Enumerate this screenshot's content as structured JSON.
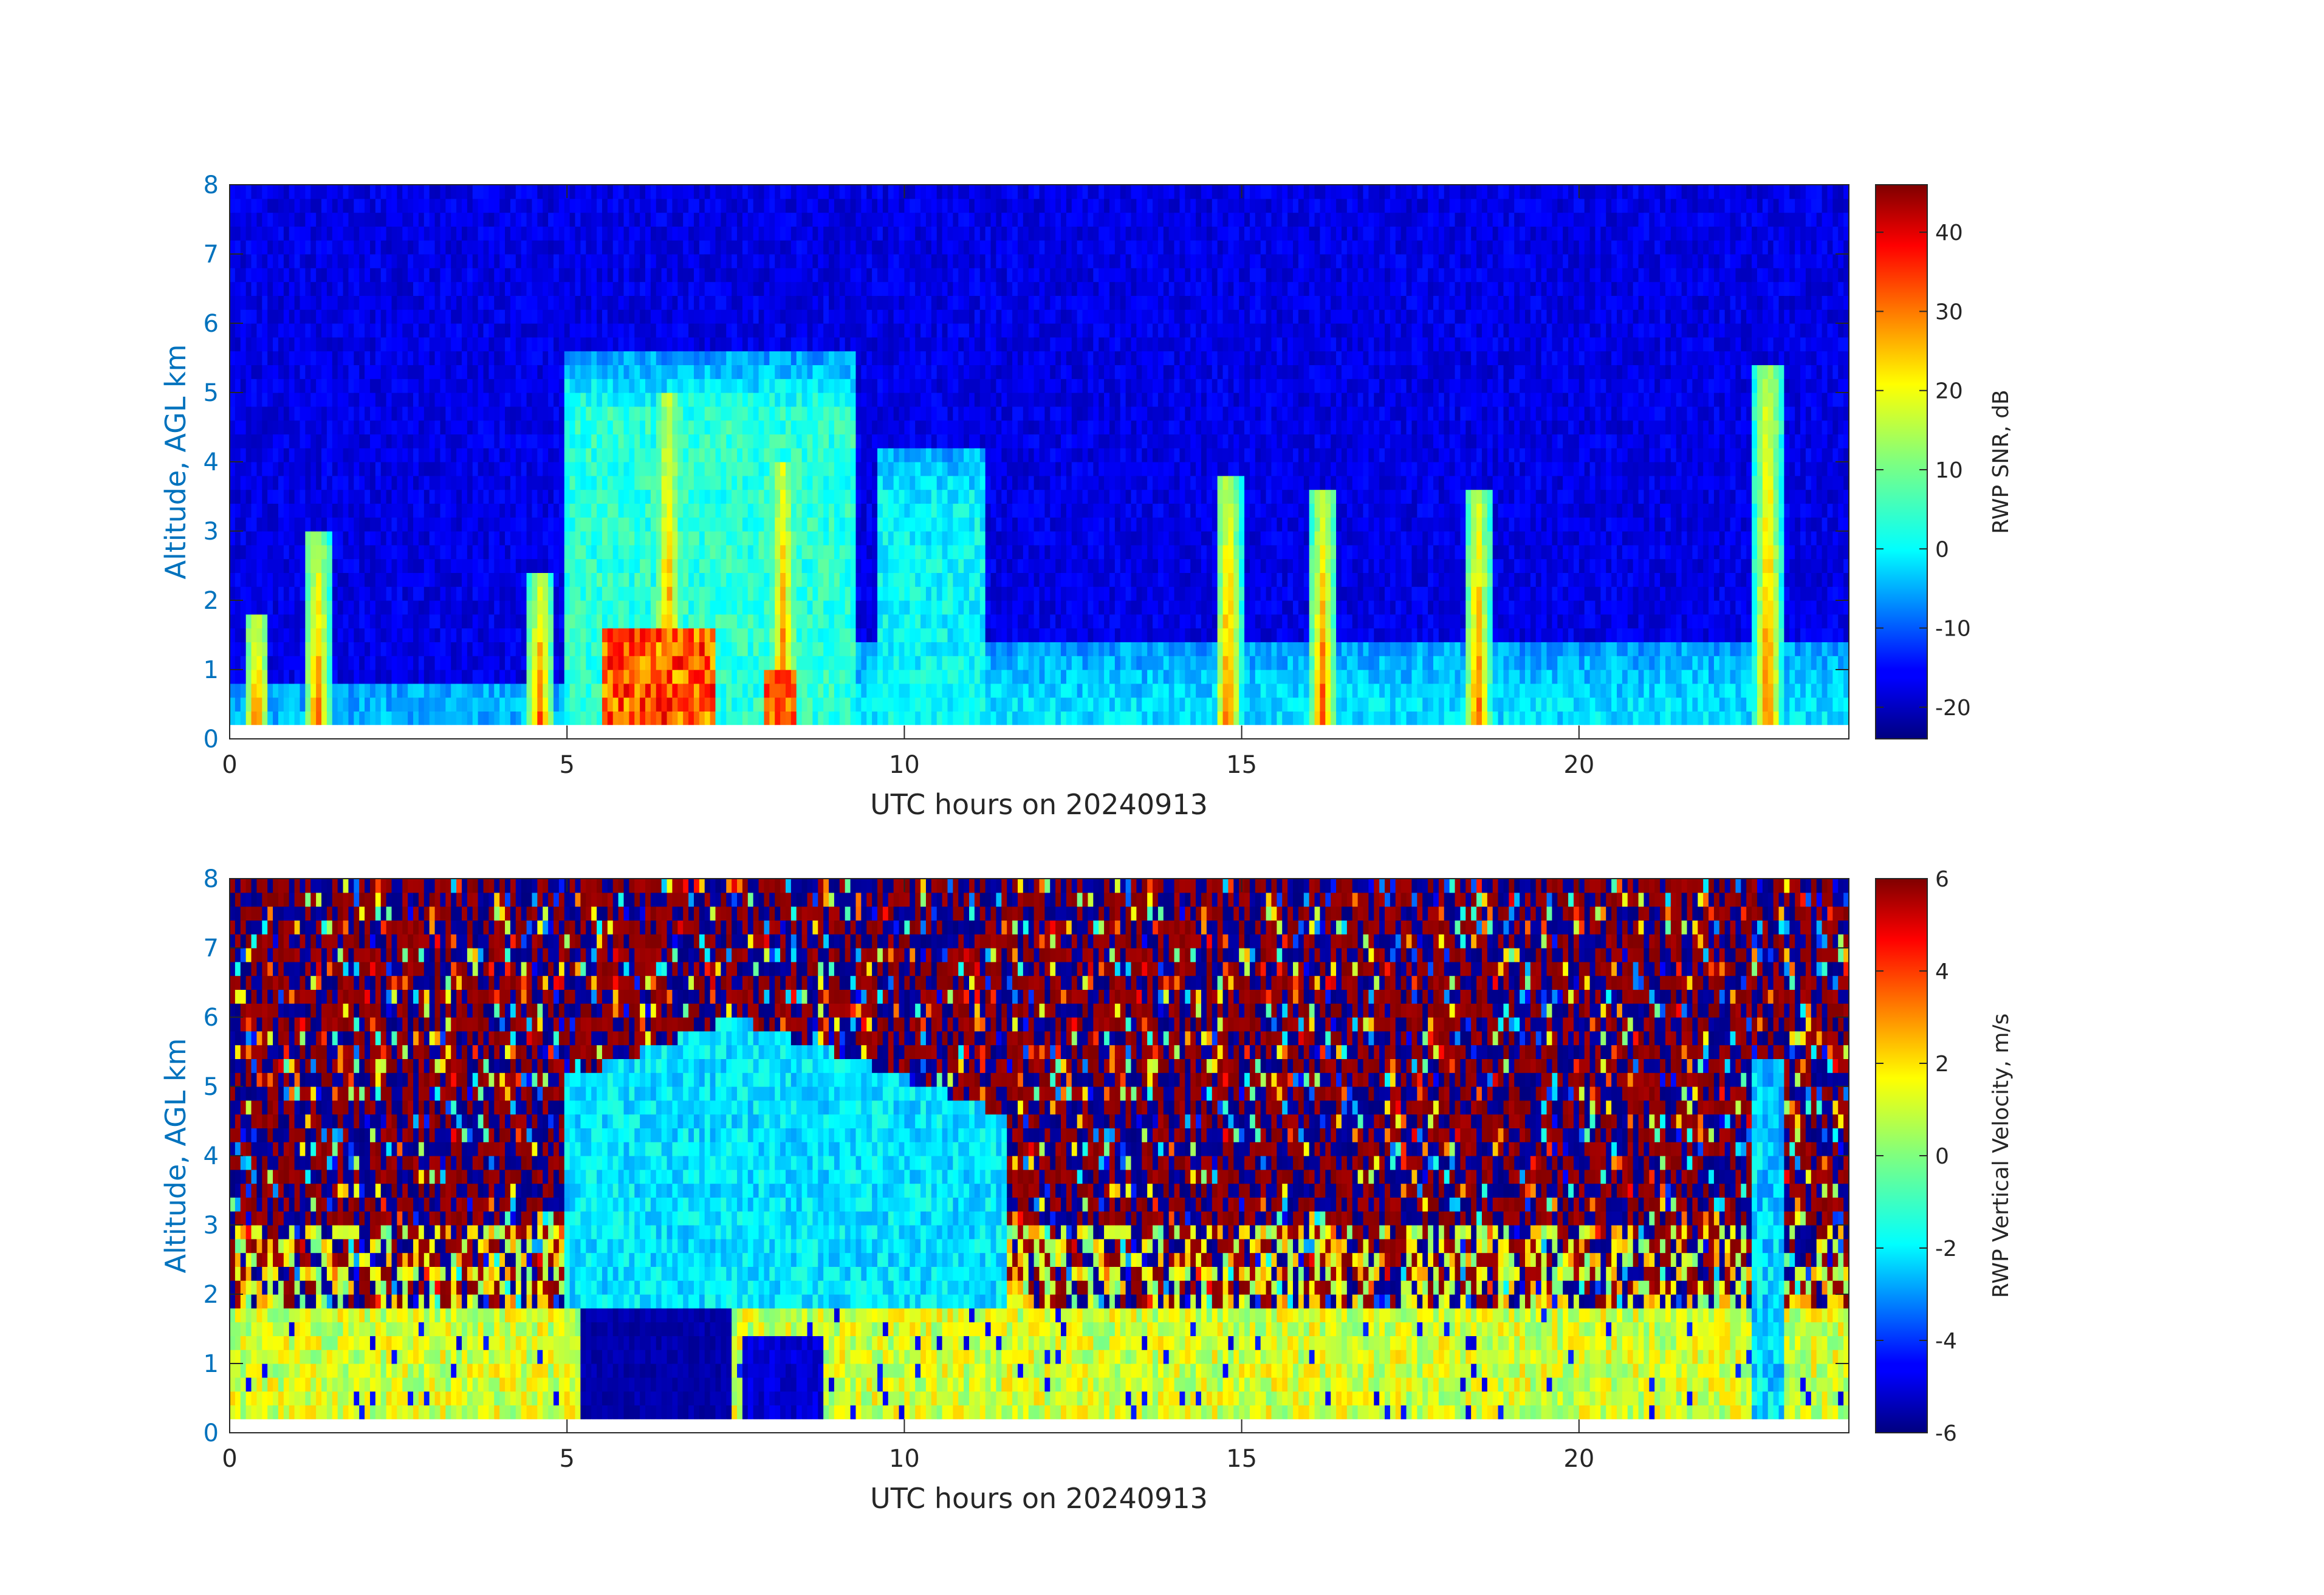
{
  "chart_data": [
    {
      "type": "heatmap",
      "title": "",
      "xlabel": "UTC hours on 20240913",
      "ylabel": "Altitude, AGL km",
      "xlim": [
        0,
        24
      ],
      "ylim": [
        0,
        8
      ],
      "x_ticks": [
        0,
        5,
        10,
        15,
        20
      ],
      "y_ticks": [
        0,
        1,
        2,
        3,
        4,
        5,
        6,
        7,
        8
      ],
      "colorbar": {
        "label": "RWP SNR, dB",
        "colormap": "jet",
        "range": [
          -24,
          46
        ],
        "ticks": [
          -20,
          -10,
          0,
          10,
          20,
          30,
          40
        ]
      },
      "grid": false,
      "features": [
        {
          "hours": [
            5.0,
            9.3
          ],
          "top_km": 5.5,
          "snr_db": 5,
          "note": ""
        },
        {
          "hours": [
            9.6,
            11.2
          ],
          "top_km": 4.2,
          "snr_db": 2
        },
        {
          "hours": [
            9.3,
            24.0
          ],
          "top_km": 1.3,
          "snr_db": 0
        },
        {
          "hours": [
            0.0,
            5.0
          ],
          "top_km": 0.8,
          "snr_db": -2
        }
      ],
      "peaks": [
        {
          "hour": 0.4,
          "top_km": 1.8
        },
        {
          "hour": 1.3,
          "top_km": 2.9
        },
        {
          "hour": 4.6,
          "top_km": 2.3
        },
        {
          "hour": 6.5,
          "top_km": 5.0
        },
        {
          "hour": 8.2,
          "top_km": 4.0
        },
        {
          "hour": 14.8,
          "top_km": 3.8
        },
        {
          "hour": 16.2,
          "top_km": 3.6
        },
        {
          "hour": 18.5,
          "top_km": 3.6
        },
        {
          "hour": 22.8,
          "top_km": 5.4
        }
      ]
    },
    {
      "type": "heatmap",
      "title": "",
      "xlabel": "UTC hours on 20240913",
      "ylabel": "Altitude, AGL km",
      "xlim": [
        0,
        24
      ],
      "ylim": [
        0,
        8
      ],
      "x_ticks": [
        0,
        5,
        10,
        15,
        20
      ],
      "y_ticks": [
        0,
        1,
        2,
        3,
        4,
        5,
        6,
        7,
        8
      ],
      "colorbar": {
        "label": "RWP Vertical Velocity, m/s",
        "colormap": "jet",
        "range": [
          -6,
          6
        ],
        "ticks": [
          -6,
          -4,
          -2,
          0,
          2,
          4,
          6
        ]
      },
      "grid": false,
      "features": [
        {
          "hours": [
            5.0,
            11.5
          ],
          "km": [
            1.8,
            6.0
          ],
          "velocity_ms": -1.8
        },
        {
          "hours": [
            5.2,
            7.4
          ],
          "km": [
            0.2,
            1.8
          ],
          "velocity_ms": -5.5
        },
        {
          "hours": [
            7.6,
            8.8
          ],
          "km": [
            0.2,
            1.4
          ],
          "velocity_ms": -5.0
        },
        {
          "hours": [
            0.0,
            24.0
          ],
          "km": [
            0.2,
            1.8
          ],
          "velocity_ms": 1.0
        },
        {
          "hours": [
            0.0,
            24.0
          ],
          "km": [
            3.0,
            8.0
          ],
          "velocity_ms": "noise ±6"
        }
      ]
    }
  ],
  "colors": {
    "axis_text": "#262626",
    "ylabel": "#0072BD",
    "axis_line": "#262626"
  }
}
